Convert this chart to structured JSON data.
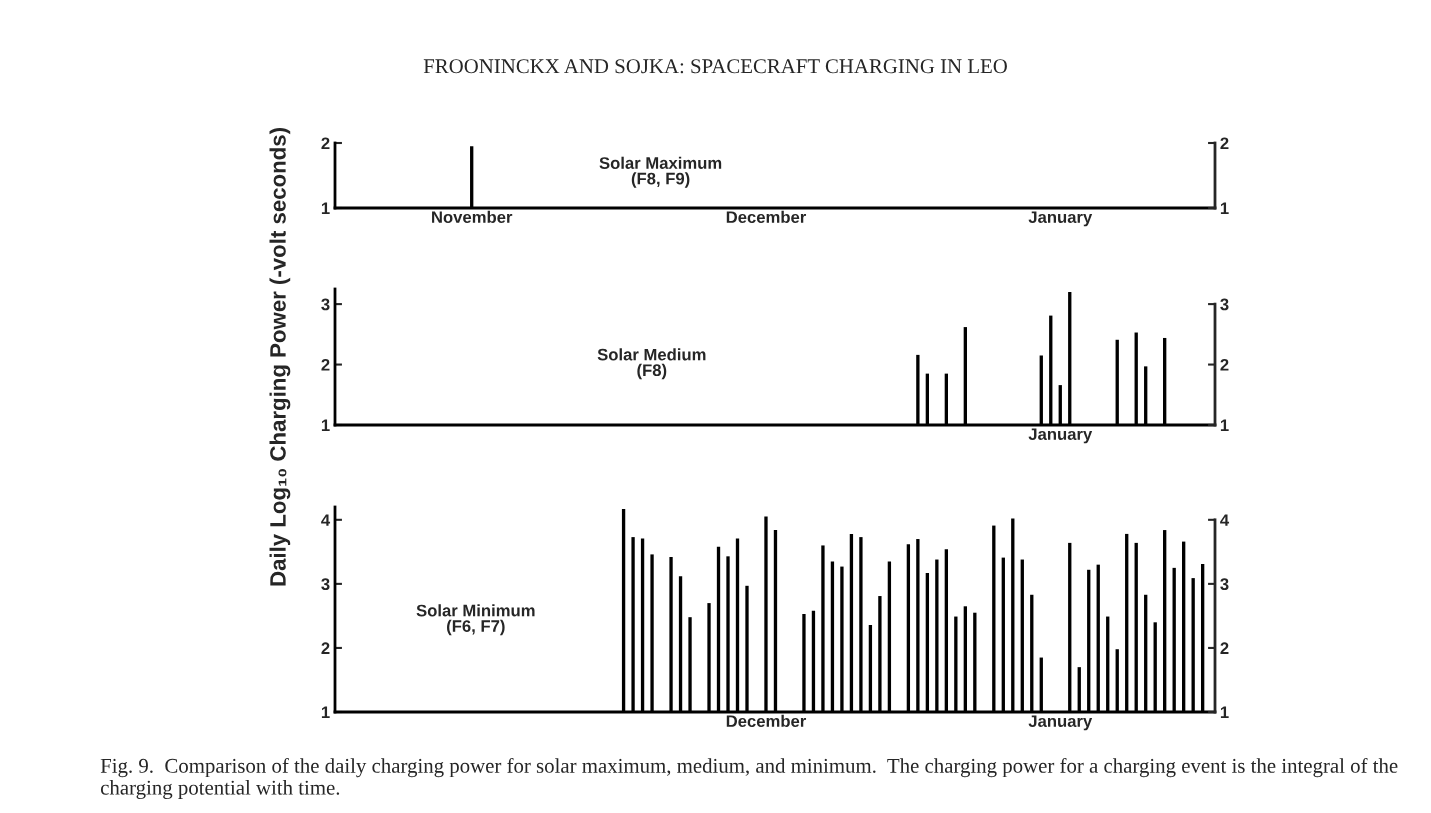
{
  "chart_data": [
    {
      "type": "bar",
      "title": "FROONINCKX AND SOJKA: SPACECRAFT CHARGING IN LEO",
      "categories": [
        null,
        null,
        null,
        null,
        null,
        null,
        null,
        null,
        null,
        null,
        null,
        null,
        null,
        null,
        "November",
        null,
        null,
        null,
        null,
        null,
        null,
        null,
        null,
        null,
        null,
        null,
        null,
        null,
        null,
        null,
        null,
        null,
        null,
        null,
        null,
        null,
        null,
        null,
        null,
        null,
        null,
        null,
        null,
        null,
        null,
        "December",
        null,
        null,
        null,
        null,
        null,
        null,
        null,
        null,
        null,
        null,
        null,
        null,
        null,
        null,
        null,
        null,
        null,
        null,
        null,
        null,
        null,
        null,
        null,
        null,
        null,
        null,
        null,
        null,
        null,
        null,
        "January",
        null,
        null,
        null,
        null,
        null,
        null,
        null,
        null,
        null,
        null,
        null,
        null,
        null,
        null,
        null,
        null
      ],
      "values": [
        null,
        null,
        null,
        null,
        null,
        null,
        null,
        null,
        null,
        null,
        null,
        null,
        null,
        null,
        1.95,
        null,
        null,
        null,
        null,
        null,
        null,
        null,
        null,
        null,
        null,
        null,
        null,
        null,
        null,
        null,
        null,
        null,
        null,
        null,
        null,
        null,
        null,
        null,
        null,
        null,
        null,
        null,
        null,
        null,
        null,
        null,
        null,
        null,
        null,
        null,
        null,
        null,
        null,
        null,
        null,
        null,
        null,
        null,
        null,
        null,
        null,
        null,
        null,
        null,
        null,
        null,
        null,
        null,
        null,
        null,
        null,
        null,
        null,
        null,
        null,
        null,
        null,
        null,
        null,
        null,
        null,
        null,
        null,
        null,
        null,
        null,
        null,
        null,
        null,
        null,
        null,
        null,
        null
      ],
      "color": "#000000",
      "ylim": [
        1,
        2
      ],
      "yticks": [
        1,
        2
      ],
      "y2lim": [
        1,
        2
      ],
      "y2ticks": [
        1,
        2
      ],
      "annotations": [
        "Solar Maximum\n(F8, F9)"
      ],
      "grid": false
    },
    {
      "type": "bar",
      "ylabel": "Daily Log₁₀ Charging Power (-volt seconds)",
      "categories": [
        null,
        null,
        null,
        null,
        null,
        null,
        null,
        null,
        null,
        null,
        null,
        null,
        null,
        null,
        null,
        null,
        null,
        null,
        null,
        null,
        null,
        null,
        null,
        null,
        null,
        null,
        null,
        null,
        null,
        null,
        null,
        null,
        null,
        null,
        null,
        null,
        null,
        null,
        null,
        null,
        null,
        null,
        null,
        null,
        null,
        null,
        null,
        null,
        null,
        null,
        null,
        null,
        null,
        null,
        null,
        null,
        null,
        null,
        null,
        null,
        null,
        null,
        null,
        null,
        null,
        null,
        null,
        null,
        null,
        null,
        null,
        null,
        null,
        null,
        null,
        null,
        "January",
        null,
        null,
        null,
        null,
        null,
        null,
        null,
        null,
        null,
        null,
        null,
        null,
        null,
        null,
        null,
        null
      ],
      "values": [
        null,
        null,
        null,
        null,
        null,
        null,
        null,
        null,
        null,
        null,
        null,
        null,
        null,
        null,
        null,
        null,
        null,
        null,
        null,
        null,
        null,
        null,
        null,
        null,
        null,
        null,
        null,
        null,
        null,
        null,
        null,
        null,
        null,
        null,
        null,
        null,
        null,
        null,
        null,
        null,
        null,
        null,
        null,
        null,
        null,
        null,
        null,
        null,
        null,
        null,
        null,
        null,
        null,
        null,
        null,
        null,
        null,
        null,
        null,
        null,
        null,
        2.16,
        1.85,
        null,
        1.85,
        null,
        2.62,
        null,
        null,
        null,
        null,
        null,
        null,
        null,
        2.15,
        2.81,
        1.66,
        3.2,
        null,
        null,
        null,
        null,
        2.41,
        null,
        2.53,
        1.97,
        null,
        2.44,
        null,
        null,
        null,
        null,
        null
      ],
      "color": "#000000",
      "ylim": [
        1,
        3.25
      ],
      "yticks": [
        1,
        2,
        3
      ],
      "y2lim": [
        1,
        3.25
      ],
      "y2ticks": [
        1,
        2,
        3
      ],
      "annotations": [
        "Solar Medium\n(F8)"
      ],
      "grid": false
    },
    {
      "type": "bar",
      "categories": [
        null,
        null,
        null,
        null,
        null,
        null,
        null,
        null,
        null,
        null,
        null,
        null,
        null,
        null,
        null,
        null,
        null,
        null,
        null,
        null,
        null,
        null,
        null,
        null,
        null,
        null,
        null,
        null,
        null,
        null,
        null,
        null,
        null,
        null,
        null,
        null,
        null,
        null,
        null,
        null,
        null,
        null,
        null,
        null,
        null,
        "December",
        null,
        null,
        null,
        null,
        null,
        null,
        null,
        null,
        null,
        null,
        null,
        null,
        null,
        null,
        null,
        null,
        null,
        null,
        null,
        null,
        null,
        null,
        null,
        null,
        null,
        null,
        null,
        null,
        null,
        null,
        "January",
        null,
        null,
        null,
        null,
        null,
        null,
        null,
        null,
        null,
        null,
        null,
        null,
        null,
        null,
        null,
        null
      ],
      "values": [
        null,
        null,
        null,
        null,
        null,
        null,
        null,
        null,
        null,
        null,
        null,
        null,
        null,
        null,
        null,
        null,
        null,
        null,
        null,
        null,
        null,
        null,
        null,
        null,
        null,
        null,
        null,
        null,
        null,
        null,
        4.17,
        3.73,
        3.71,
        3.46,
        null,
        3.42,
        3.12,
        2.48,
        null,
        2.7,
        3.58,
        3.43,
        3.71,
        2.97,
        null,
        4.05,
        3.84,
        null,
        null,
        2.53,
        2.58,
        3.6,
        3.35,
        3.27,
        3.78,
        3.73,
        2.36,
        2.81,
        3.35,
        null,
        3.62,
        3.7,
        3.17,
        3.38,
        3.54,
        2.49,
        2.65,
        2.55,
        null,
        3.91,
        3.41,
        4.02,
        3.38,
        2.83,
        1.85,
        null,
        null,
        3.64,
        1.7,
        3.22,
        3.3,
        2.49,
        1.98,
        3.78,
        3.64,
        2.83,
        2.4,
        3.84,
        3.25,
        3.66,
        3.09,
        3.31,
        null
      ],
      "color": "#000000",
      "ylim": [
        1,
        4.2
      ],
      "yticks": [
        1,
        2,
        3,
        4
      ],
      "y2lim": [
        1,
        4.2
      ],
      "y2ticks": [
        1,
        2,
        3,
        4
      ],
      "annotations": [
        "Solar Minimum\n(F6, F7)",
        "Fig. 9.  Comparison of the daily charging power for solar maximum, medium, and minimum.  The charging power for a charging event is the integral of the charging potential with time."
      ],
      "grid": false
    }
  ]
}
